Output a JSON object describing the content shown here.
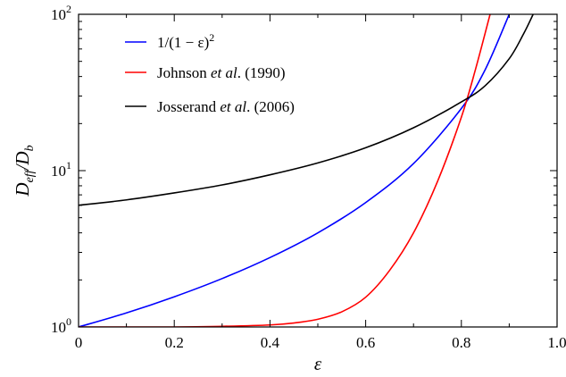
{
  "chart_data": {
    "type": "line",
    "xlabel": "ε",
    "ylabel": "D_eff/D_b",
    "ylabel_parts": {
      "main": "D",
      "sub1": "eff",
      "sep": "/",
      "main2": "D",
      "sub2": "b"
    },
    "xlim": [
      0,
      1.0
    ],
    "ylim": [
      1,
      100
    ],
    "yscale": "log",
    "grid": false,
    "legend_position": "top-left",
    "x_ticks": [
      0,
      0.2,
      0.4,
      0.6,
      0.8,
      1.0
    ],
    "x_tick_labels": [
      "0",
      "0.2",
      "0.4",
      "0.6",
      "0.8",
      "1.0"
    ],
    "y_ticks": [
      1,
      10,
      100
    ],
    "y_tick_labels": [
      {
        "base": "10",
        "exp": "0"
      },
      {
        "base": "10",
        "exp": "1"
      },
      {
        "base": "10",
        "exp": "2"
      }
    ],
    "series": [
      {
        "name": "1/(1 − ε)²",
        "legend": {
          "text": "1/(1 − ε)",
          "sup": "2"
        },
        "color": "#0000ff",
        "x": [
          0,
          0.1,
          0.2,
          0.3,
          0.4,
          0.5,
          0.6,
          0.7,
          0.8,
          0.85,
          0.9
        ],
        "y": [
          1,
          1.23,
          1.56,
          2.04,
          2.78,
          4.0,
          6.25,
          11.1,
          25.0,
          44.4,
          100
        ]
      },
      {
        "name": "Johnson et al. (1990)",
        "legend": {
          "pre": "Johnson ",
          "italic": "et al",
          "post": ". (1990)"
        },
        "color": "#ff0000",
        "x": [
          0,
          0.2,
          0.3,
          0.4,
          0.45,
          0.5,
          0.55,
          0.6,
          0.65,
          0.7,
          0.75,
          0.8,
          0.83,
          0.86
        ],
        "y": [
          1,
          1.0,
          1.01,
          1.03,
          1.06,
          1.12,
          1.25,
          1.55,
          2.3,
          4.0,
          8.5,
          22,
          45,
          100
        ]
      },
      {
        "name": "Josserand et al. (2006)",
        "legend": {
          "pre": "Josserand ",
          "italic": "et al",
          "post": ". (2006)"
        },
        "color": "#000000",
        "x": [
          0,
          0.1,
          0.2,
          0.3,
          0.4,
          0.5,
          0.6,
          0.7,
          0.8,
          0.85,
          0.9,
          0.93,
          0.95
        ],
        "y": [
          6.0,
          6.5,
          7.2,
          8.1,
          9.4,
          11.2,
          14.0,
          18.8,
          27.5,
          35,
          52,
          75,
          100
        ]
      }
    ]
  }
}
